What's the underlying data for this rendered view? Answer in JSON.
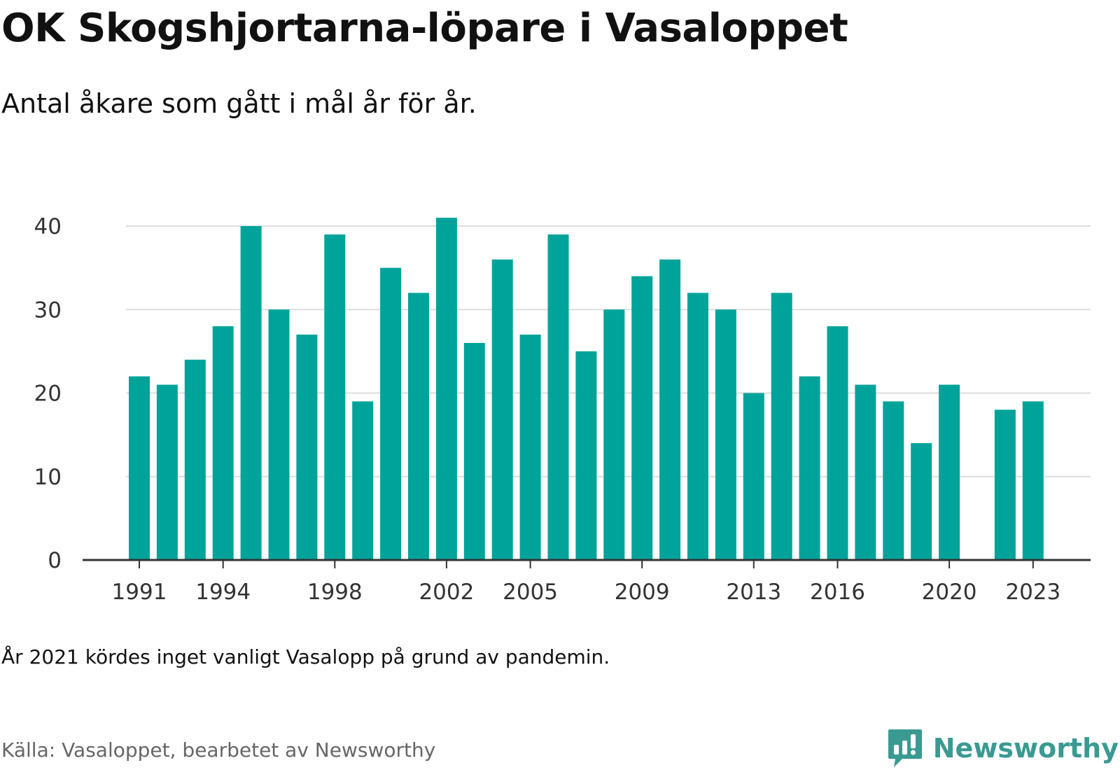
{
  "title": "OK Skogshjortarna-löpare i Vasaloppet",
  "subtitle": "Antal åkare som gått i mål år för år.",
  "note": "År 2021 kördes inget vanligt Vasalopp på grund av pandemin.",
  "source": "Källa: Vasaloppet, bearbetet av Newsworthy",
  "brand": {
    "name": "Newsworthy",
    "logo_icon": "bar-chart-speech-bubble-icon"
  },
  "colors": {
    "bar": "#00a39a",
    "grid": "#dddddd",
    "axis": "#333333",
    "brand": "#3a9a92"
  },
  "chart_data": {
    "type": "bar",
    "x": [
      1991,
      1992,
      1993,
      1994,
      1995,
      1996,
      1997,
      1998,
      1999,
      2000,
      2001,
      2002,
      2003,
      2004,
      2005,
      2006,
      2007,
      2008,
      2009,
      2010,
      2011,
      2012,
      2013,
      2014,
      2015,
      2016,
      2017,
      2018,
      2019,
      2020,
      2021,
      2022,
      2023
    ],
    "values": [
      22,
      21,
      24,
      28,
      40,
      30,
      27,
      39,
      19,
      35,
      32,
      41,
      26,
      36,
      27,
      39,
      25,
      30,
      34,
      36,
      32,
      30,
      20,
      32,
      22,
      28,
      21,
      19,
      14,
      21,
      null,
      18,
      19
    ],
    "x_ticks": [
      "1991",
      "1994",
      "1998",
      "2002",
      "2005",
      "2009",
      "2013",
      "2016",
      "2020",
      "2023"
    ],
    "y_ticks": [
      "0",
      "10",
      "20",
      "30",
      "40"
    ],
    "ylim": [
      0,
      40
    ],
    "grid": true
  }
}
